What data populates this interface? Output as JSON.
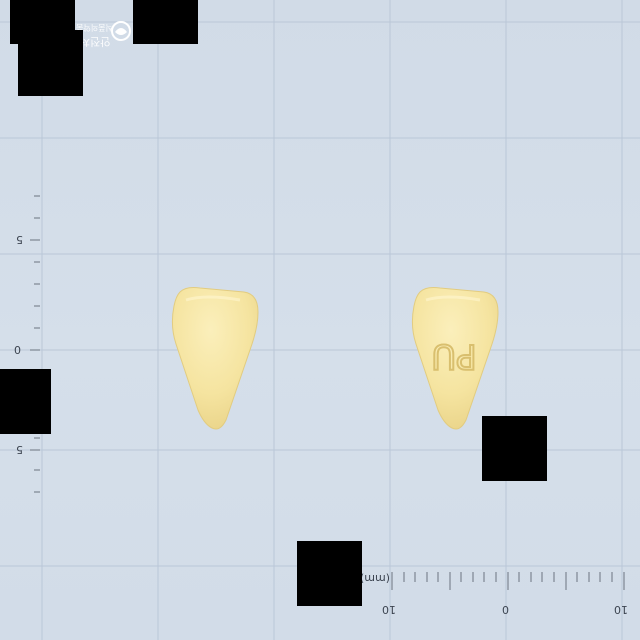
{
  "image": {
    "subject": "yellow triangular tablet, front and back view on gridded background",
    "imprint": "PU",
    "pill_color": "#f6e7a6",
    "background_color": "#d3dde9",
    "grid_line_color": "#b9c6d6"
  },
  "ruler_left": {
    "labels": [
      "5",
      "0",
      "5"
    ]
  },
  "ruler_bottom": {
    "unit": "(mm)",
    "labels": [
      "10",
      "0",
      "10"
    ]
  },
  "watermark": {
    "line1": "식품의약품",
    "line2": "안전처"
  }
}
